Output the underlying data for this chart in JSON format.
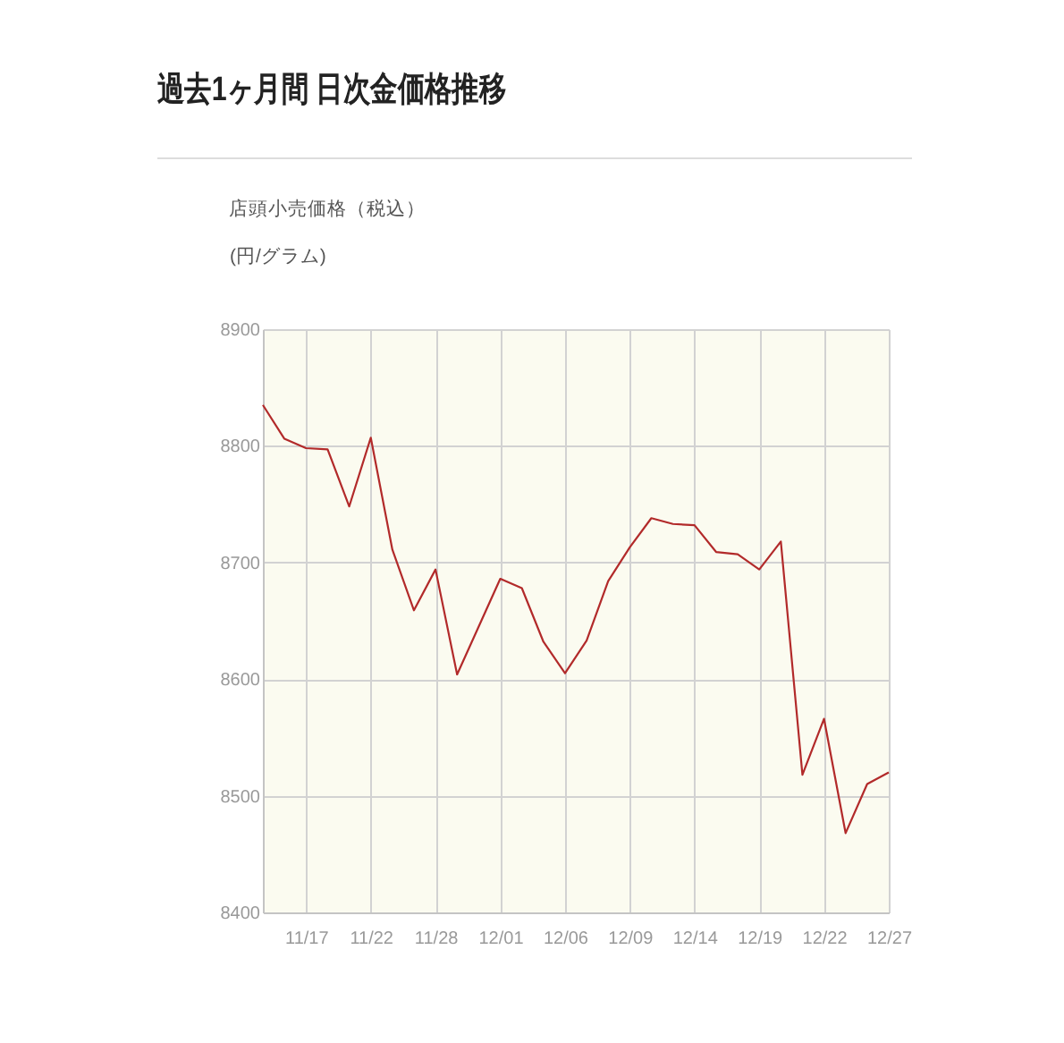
{
  "chart_data": {
    "type": "line",
    "title": "過去1ヶ月間 日次金価格推移",
    "subtitle": "店頭小売価格（税込）",
    "ylabel": "(円/グラム)",
    "categories": [
      null,
      null,
      "11/17",
      null,
      null,
      "11/22",
      null,
      null,
      "11/28",
      null,
      null,
      "12/01",
      null,
      null,
      "12/06",
      null,
      null,
      "12/09",
      null,
      null,
      "12/14",
      null,
      null,
      "12/19",
      null,
      null,
      "12/22",
      null,
      null,
      "12/27"
    ],
    "series": [
      {
        "color": "#b22a2a",
        "values": [
          8835,
          8806,
          8798,
          8797,
          8748,
          8807,
          8711,
          8659,
          8694,
          8604,
          8645,
          8686,
          8678,
          8632,
          8605,
          8633,
          8684,
          8713,
          8738,
          8733,
          8732,
          8709,
          8707,
          8694,
          8718,
          8518,
          8566,
          8468,
          8510,
          8520
        ]
      }
    ],
    "ylim": [
      8400,
      8900
    ],
    "yticks": [
      8400,
      8500,
      8600,
      8700,
      8800,
      8900
    ],
    "grid": true
  }
}
